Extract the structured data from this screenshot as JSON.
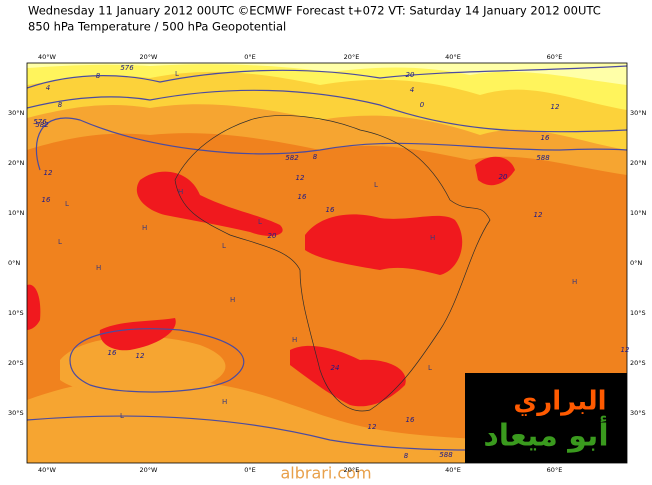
{
  "header": {
    "title": "Wednesday 11 January 2012 00UTC ©ECMWF Forecast t+072 VT: Saturday 14 January 2012 00UTC",
    "subtitle": "850 hPa Temperature / 500 hPa Geopotential"
  },
  "map": {
    "lat_labels": [
      "30°N",
      "20°N",
      "10°N",
      "0°N",
      "10°S",
      "20°S",
      "30°S"
    ],
    "lon_labels": [
      "40°W",
      "20°W",
      "0°E",
      "20°E",
      "40°E",
      "60°E"
    ],
    "contour_labels": [
      "4",
      "8",
      "8",
      "576",
      "12",
      "16",
      "582",
      "8",
      "12",
      "16",
      "20",
      "16",
      "12",
      "12",
      "16",
      "588",
      "20",
      "24",
      "12",
      "16",
      "20",
      "16",
      "12",
      "576",
      "582",
      "588",
      "8",
      "0",
      "4",
      "12"
    ],
    "pressure_centres": [
      "L",
      "H",
      "L",
      "H",
      "L",
      "H",
      "L",
      "H",
      "H",
      "L",
      "H",
      "L",
      "H",
      "L",
      "H",
      "L"
    ]
  },
  "watermark": "albrari.com",
  "logo": {
    "line1": "البراري",
    "line2": "أبو ميعاد"
  }
}
